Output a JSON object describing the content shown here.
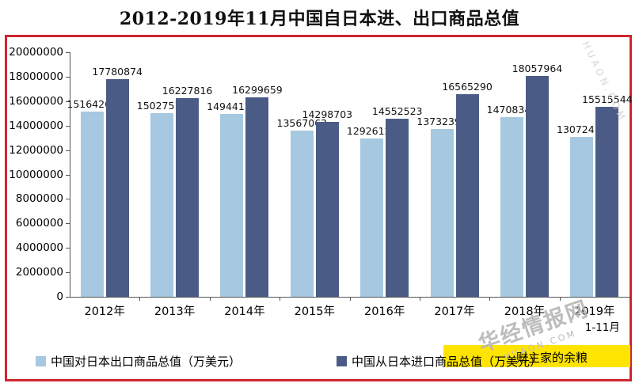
{
  "page": {
    "watermark_cn": "华经情报网",
    "watermark_en": "HUAON.COM",
    "watermark_corner": "HUAON.COM",
    "badge_text": "财主家的余粮",
    "frame_color": "#cf2630",
    "highlight_color": "#ffe400"
  },
  "chart_data": {
    "type": "bar",
    "title": "2012-2019年11月中国自日本进、出口商品总值",
    "categories": [
      "2012年",
      "2013年",
      "2014年",
      "2015年",
      "2016年",
      "2017年",
      "2018年",
      "2019年"
    ],
    "x_sub_label": {
      "index": 7,
      "text": "1-11月"
    },
    "series": [
      {
        "name": "中国对日本出口商品总值（万美元）",
        "color": "#a6c8e0",
        "values": [
          15164264,
          15027513,
          14944179,
          13567063,
          12926128,
          13732393,
          14708347,
          13072415
        ]
      },
      {
        "name": "中国从日本进口商品总值（万美元）",
        "color": "#4a5c85",
        "values": [
          17780874,
          16227816,
          16299659,
          14298703,
          14552523,
          16565290,
          18057964,
          15515544
        ]
      }
    ],
    "ylim": [
      0,
      20000000
    ],
    "y_tick_step": 2000000,
    "y_ticks": [
      0,
      2000000,
      4000000,
      6000000,
      8000000,
      10000000,
      12000000,
      14000000,
      16000000,
      18000000,
      20000000
    ],
    "grid": false,
    "data_labels": true,
    "legend_position": "bottom"
  }
}
